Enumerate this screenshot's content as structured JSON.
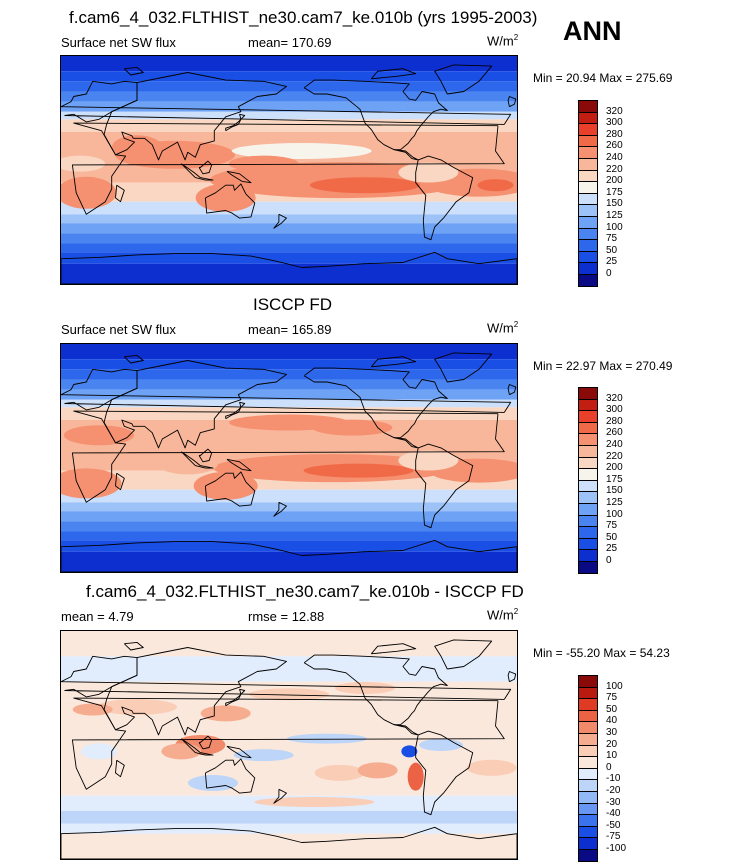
{
  "header": {
    "title": "f.cam6_4_032.FLTHIST_ne30.cam7_ke.010b (yrs 1995-2003)",
    "season": "ANN"
  },
  "panels": [
    {
      "title": "",
      "left_label": "Surface net SW flux",
      "center_label": "mean= 170.69",
      "units": "W/m",
      "units_sup": "2",
      "minmax": "Min =  20.94 Max = 275.69",
      "cbar": [
        "320",
        "300",
        "280",
        "260",
        "240",
        "220",
        "200",
        "175",
        "150",
        "125",
        "100",
        "75",
        "50",
        "25",
        "0"
      ]
    },
    {
      "title": "ISCCP FD",
      "left_label": "Surface net SW flux",
      "center_label": "mean= 165.89",
      "units": "W/m",
      "units_sup": "2",
      "minmax": "Min =  22.97 Max = 270.49",
      "cbar": [
        "320",
        "300",
        "280",
        "260",
        "240",
        "220",
        "200",
        "175",
        "150",
        "125",
        "100",
        "75",
        "50",
        "25",
        "0"
      ]
    },
    {
      "title": "f.cam6_4_032.FLTHIST_ne30.cam7_ke.010b - ISCCP FD",
      "left_label": "mean =   4.79",
      "center_label": "rmse =  12.88",
      "units": "W/m",
      "units_sup": "2",
      "minmax": "Min = -55.20 Max =  54.23",
      "cbar": [
        "100",
        "75",
        "50",
        "40",
        "30",
        "20",
        "10",
        "0",
        "-10",
        "-20",
        "-30",
        "-40",
        "-50",
        "-75",
        "-100"
      ]
    }
  ],
  "colors": {
    "abs_scale": [
      "#0a0a85",
      "#0e2fd0",
      "#1a4fe6",
      "#2d68ec",
      "#4a84f0",
      "#6ea2f4",
      "#9cc2f8",
      "#cde0fb",
      "#f7f4ec",
      "#f9d7c2",
      "#f8b79a",
      "#f59070",
      "#f06a48",
      "#e8402a",
      "#c31e12",
      "#8a0a0a"
    ],
    "diff_scale": [
      "#0a0a85",
      "#0e2fd0",
      "#1a4fe6",
      "#3b73ee",
      "#6797f2",
      "#93b8f6",
      "#bcd5f9",
      "#e1ecfc",
      "#fbe8dc",
      "#f9cdb6",
      "#f6ac8f",
      "#f18a6a",
      "#eb6244",
      "#df3b24",
      "#b91a10",
      "#8a0a0a"
    ]
  },
  "chart_data": [
    {
      "type": "heatmap",
      "title": "f.cam6_4_032.FLTHIST_ne30.cam7_ke.010b (yrs 1995-2003)",
      "variable": "Surface net SW flux",
      "units": "W/m2",
      "mean": 170.69,
      "min": 20.94,
      "max": 275.69,
      "levels": [
        0,
        25,
        50,
        75,
        100,
        125,
        150,
        175,
        200,
        220,
        240,
        260,
        280,
        300,
        320
      ]
    },
    {
      "type": "heatmap",
      "title": "ISCCP FD",
      "variable": "Surface net SW flux",
      "units": "W/m2",
      "mean": 165.89,
      "min": 22.97,
      "max": 270.49,
      "levels": [
        0,
        25,
        50,
        75,
        100,
        125,
        150,
        175,
        200,
        220,
        240,
        260,
        280,
        300,
        320
      ]
    },
    {
      "type": "heatmap",
      "title": "f.cam6_4_032.FLTHIST_ne30.cam7_ke.010b - ISCCP FD",
      "units": "W/m2",
      "mean": 4.79,
      "rmse": 12.88,
      "min": -55.2,
      "max": 54.23,
      "levels": [
        -100,
        -75,
        -50,
        -40,
        -30,
        -20,
        -10,
        0,
        10,
        20,
        30,
        40,
        50,
        75,
        100
      ]
    }
  ]
}
